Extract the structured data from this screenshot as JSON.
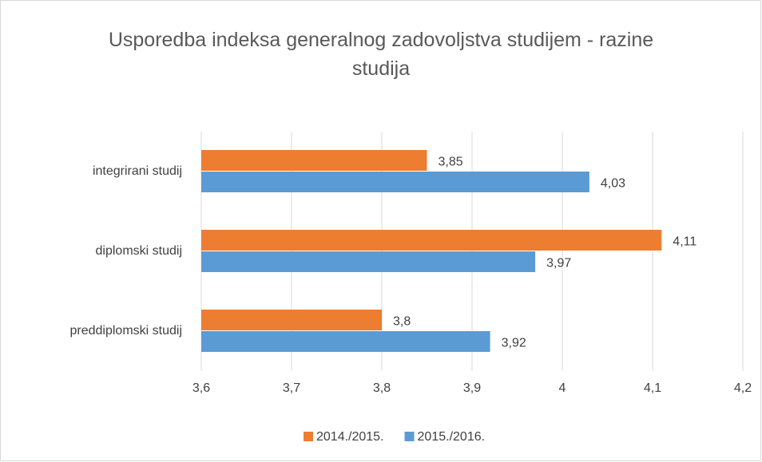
{
  "chart_data": {
    "type": "bar",
    "orientation": "horizontal",
    "title": "Usporedba indeksa generalnog zadovoljstva studijem - razine studija",
    "categories": [
      "integrirani studij",
      "diplomski studij",
      "preddiplomski studij"
    ],
    "series": [
      {
        "name": "2014./2015.",
        "color": "#ed7d31",
        "values": [
          3.85,
          4.11,
          3.8
        ],
        "value_labels": [
          "3,85",
          "4,11",
          "3,8"
        ]
      },
      {
        "name": "2015./2016.",
        "color": "#5b9bd5",
        "values": [
          4.03,
          3.97,
          3.92
        ],
        "value_labels": [
          "4,03",
          "3,97",
          "3,92"
        ]
      }
    ],
    "xlim": [
      3.6,
      4.2
    ],
    "xticks": [
      {
        "value": 3.6,
        "label": "3,6"
      },
      {
        "value": 3.7,
        "label": "3,7"
      },
      {
        "value": 3.8,
        "label": "3,8"
      },
      {
        "value": 3.9,
        "label": "3,9"
      },
      4,
      {
        "value": 4.1,
        "label": "4,1"
      },
      {
        "value": 4.2,
        "label": "4,2"
      }
    ],
    "grid": true,
    "legend": "bottom"
  }
}
